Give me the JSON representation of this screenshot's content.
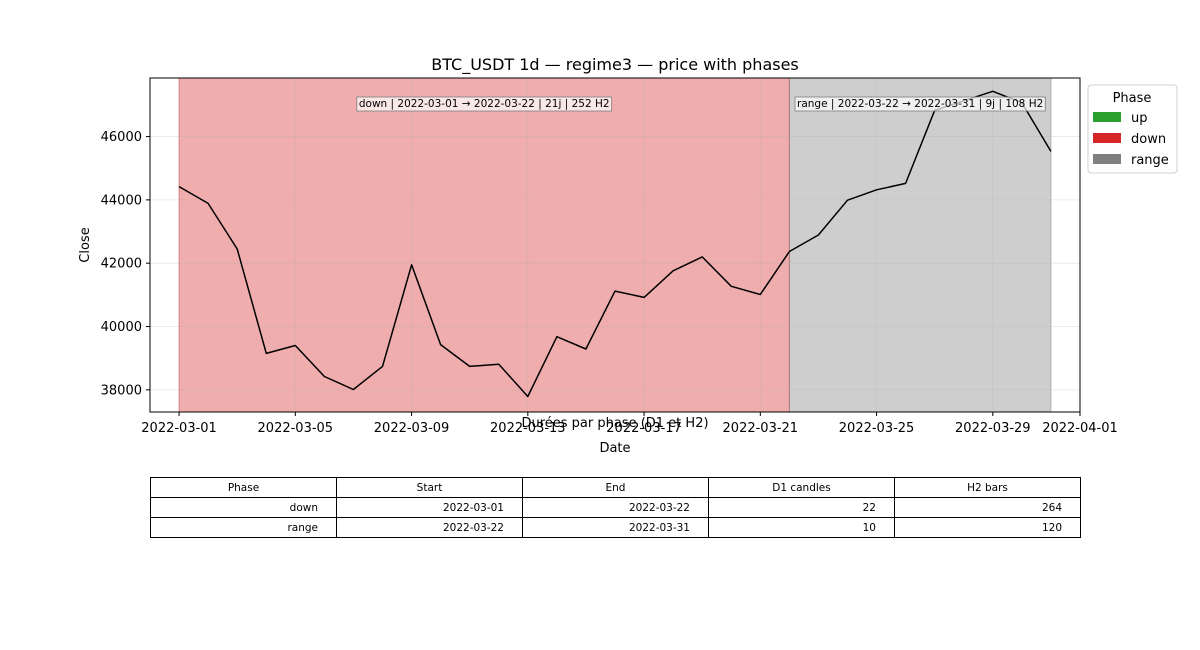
{
  "chart_data": {
    "type": "line",
    "title": "BTC_USDT 1d — regime3 — price with phases",
    "xlabel": "Date",
    "ylabel": "Close",
    "x_start": "2022-03-01",
    "x_ticks": [
      "2022-03-01",
      "2022-03-05",
      "2022-03-09",
      "2022-03-13",
      "2022-03-17",
      "2022-03-21",
      "2022-03-25",
      "2022-03-29",
      "2022-04-01"
    ],
    "y_ticks": [
      38000,
      40000,
      42000,
      44000,
      46000
    ],
    "xlim": [
      "2022-02-28",
      "2022-04-01"
    ],
    "ylim": [
      37300,
      47850
    ],
    "grid": true,
    "series": [
      {
        "values": [
          {
            "x": "2022-03-01",
            "y": 44420
          },
          {
            "x": "2022-03-02",
            "y": 43890
          },
          {
            "x": "2022-03-03",
            "y": 42450
          },
          {
            "x": "2022-03-04",
            "y": 39150
          },
          {
            "x": "2022-03-05",
            "y": 39400
          },
          {
            "x": "2022-03-06",
            "y": 38420
          },
          {
            "x": "2022-03-07",
            "y": 38010
          },
          {
            "x": "2022-03-08",
            "y": 38740
          },
          {
            "x": "2022-03-09",
            "y": 41950
          },
          {
            "x": "2022-03-10",
            "y": 39430
          },
          {
            "x": "2022-03-11",
            "y": 38740
          },
          {
            "x": "2022-03-12",
            "y": 38810
          },
          {
            "x": "2022-03-13",
            "y": 37790
          },
          {
            "x": "2022-03-14",
            "y": 39680
          },
          {
            "x": "2022-03-15",
            "y": 39290
          },
          {
            "x": "2022-03-16",
            "y": 41120
          },
          {
            "x": "2022-03-17",
            "y": 40920
          },
          {
            "x": "2022-03-18",
            "y": 41760
          },
          {
            "x": "2022-03-19",
            "y": 42200
          },
          {
            "x": "2022-03-20",
            "y": 41270
          },
          {
            "x": "2022-03-21",
            "y": 41010
          },
          {
            "x": "2022-03-22",
            "y": 42370
          },
          {
            "x": "2022-03-23",
            "y": 42890
          },
          {
            "x": "2022-03-24",
            "y": 43990
          },
          {
            "x": "2022-03-25",
            "y": 44320
          },
          {
            "x": "2022-03-26",
            "y": 44520
          },
          {
            "x": "2022-03-27",
            "y": 46830
          },
          {
            "x": "2022-03-28",
            "y": 47130
          },
          {
            "x": "2022-03-29",
            "y": 47430
          },
          {
            "x": "2022-03-30",
            "y": 47070
          },
          {
            "x": "2022-03-31",
            "y": 45530
          }
        ]
      }
    ],
    "phases": [
      {
        "phase": "down",
        "start": "2022-03-01",
        "end": "2022-03-22",
        "color": "#d62728",
        "label": "down | 2022-03-01 → 2022-03-22 | 21j | 252 H2"
      },
      {
        "phase": "range",
        "start": "2022-03-22",
        "end": "2022-03-31",
        "color": "#7f7f7f",
        "label": "range | 2022-03-22 → 2022-03-31 | 9j | 108 H2"
      }
    ],
    "legend": {
      "title": "Phase",
      "placement": "outside-right",
      "entries": [
        {
          "label": "up",
          "color": "#2ca02c"
        },
        {
          "label": "down",
          "color": "#d62728"
        },
        {
          "label": "range",
          "color": "#7f7f7f"
        }
      ]
    }
  },
  "table": {
    "title": "Durées par phase (D1 et H2)",
    "headers": [
      "Phase",
      "Start",
      "End",
      "D1 candles",
      "H2 bars"
    ],
    "rows": [
      [
        "down",
        "2022-03-01",
        "2022-03-22",
        "22",
        "264"
      ],
      [
        "range",
        "2022-03-22",
        "2022-03-31",
        "10",
        "120"
      ]
    ]
  }
}
